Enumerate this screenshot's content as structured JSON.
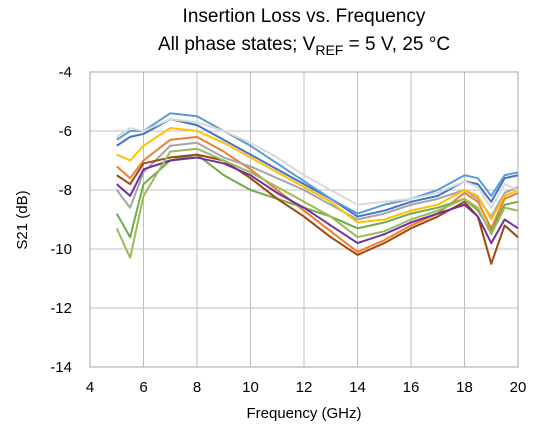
{
  "chart_data": {
    "type": "line",
    "title": "Insertion Loss vs. Frequency",
    "subtitle_parts": [
      "All phase states; V",
      "REF",
      " = 5 V, 25 °C"
    ],
    "x_label": "Frequency (GHz)",
    "y_label": "S21 (dB)",
    "x": [
      5,
      5.5,
      6,
      7,
      8,
      9,
      10,
      11,
      12,
      13,
      14,
      15,
      16,
      17,
      18,
      18.5,
      19,
      19.5,
      20
    ],
    "series": [
      {
        "color": "#4472c4",
        "values": [
          -6.5,
          -6.2,
          -6.1,
          -5.6,
          -5.8,
          -6.3,
          -6.8,
          -7.3,
          -7.8,
          -8.3,
          -8.9,
          -8.7,
          -8.4,
          -8.2,
          -7.7,
          -7.8,
          -8.4,
          -7.6,
          -7.5
        ]
      },
      {
        "color": "#ed7d31",
        "values": [
          -7.2,
          -7.6,
          -7.0,
          -6.3,
          -6.2,
          -6.7,
          -7.3,
          -8.0,
          -8.7,
          -9.4,
          -10.1,
          -9.7,
          -9.2,
          -8.8,
          -8.1,
          -8.4,
          -9.3,
          -8.3,
          -8.1
        ]
      },
      {
        "color": "#a5a5a5",
        "values": [
          -8.0,
          -8.6,
          -7.4,
          -6.5,
          -6.4,
          -6.9,
          -7.2,
          -7.6,
          -8.0,
          -8.5,
          -9.0,
          -8.8,
          -8.5,
          -8.3,
          -8.0,
          -8.3,
          -8.9,
          -8.1,
          -7.9
        ]
      },
      {
        "color": "#ffc000",
        "values": [
          -6.8,
          -7.0,
          -6.5,
          -5.9,
          -6.0,
          -6.4,
          -6.9,
          -7.4,
          -7.9,
          -8.4,
          -9.1,
          -9.0,
          -8.7,
          -8.5,
          -8.0,
          -8.2,
          -9.0,
          -8.2,
          -8.0
        ]
      },
      {
        "color": "#5b9bd5",
        "values": [
          -6.3,
          -6.0,
          -6.0,
          -5.4,
          -5.5,
          -6.0,
          -6.5,
          -7.1,
          -7.7,
          -8.3,
          -8.8,
          -8.5,
          -8.3,
          -8.0,
          -7.5,
          -7.6,
          -8.2,
          -7.5,
          -7.4
        ]
      },
      {
        "color": "#70ad47",
        "values": [
          -8.8,
          -9.6,
          -7.8,
          -7.0,
          -6.8,
          -7.5,
          -8.0,
          -8.3,
          -8.6,
          -8.9,
          -9.3,
          -9.1,
          -8.8,
          -8.6,
          -8.3,
          -8.7,
          -9.4,
          -8.5,
          -8.4
        ]
      },
      {
        "color": "#9e480e",
        "values": [
          -7.5,
          -7.8,
          -7.1,
          -6.9,
          -6.8,
          -7.0,
          -7.6,
          -8.3,
          -8.9,
          -9.6,
          -10.2,
          -9.8,
          -9.3,
          -8.9,
          -8.4,
          -8.9,
          -10.5,
          -9.2,
          -9.6
        ]
      },
      {
        "color": "#7030a0",
        "values": [
          -7.8,
          -8.2,
          -7.3,
          -7.0,
          -6.9,
          -7.1,
          -7.5,
          -8.1,
          -8.6,
          -9.2,
          -9.8,
          -9.5,
          -9.1,
          -8.8,
          -8.5,
          -8.9,
          -9.8,
          -9.0,
          -9.3
        ]
      },
      {
        "color": "#9bbb59",
        "values": [
          -9.3,
          -10.3,
          -8.2,
          -6.7,
          -6.6,
          -7.0,
          -7.4,
          -7.9,
          -8.4,
          -8.9,
          -9.6,
          -9.4,
          -9.0,
          -8.7,
          -8.3,
          -8.6,
          -9.5,
          -8.6,
          -8.7
        ]
      },
      {
        "color": "#d9d9d9",
        "values": [
          -6.2,
          -5.9,
          -6.0,
          -5.6,
          -5.7,
          -6.0,
          -6.4,
          -6.9,
          -7.5,
          -8.0,
          -8.5,
          -8.4,
          -8.3,
          -8.1,
          -7.7,
          -7.9,
          -8.6,
          -7.8,
          -8.0
        ]
      }
    ],
    "xlim": [
      4,
      20
    ],
    "xticks": [
      4,
      6,
      8,
      10,
      12,
      14,
      16,
      18,
      20
    ],
    "ylim": [
      -14,
      -4
    ],
    "yticks": [
      -14,
      -12,
      -10,
      -8,
      -6,
      -4
    ],
    "grid": true
  }
}
